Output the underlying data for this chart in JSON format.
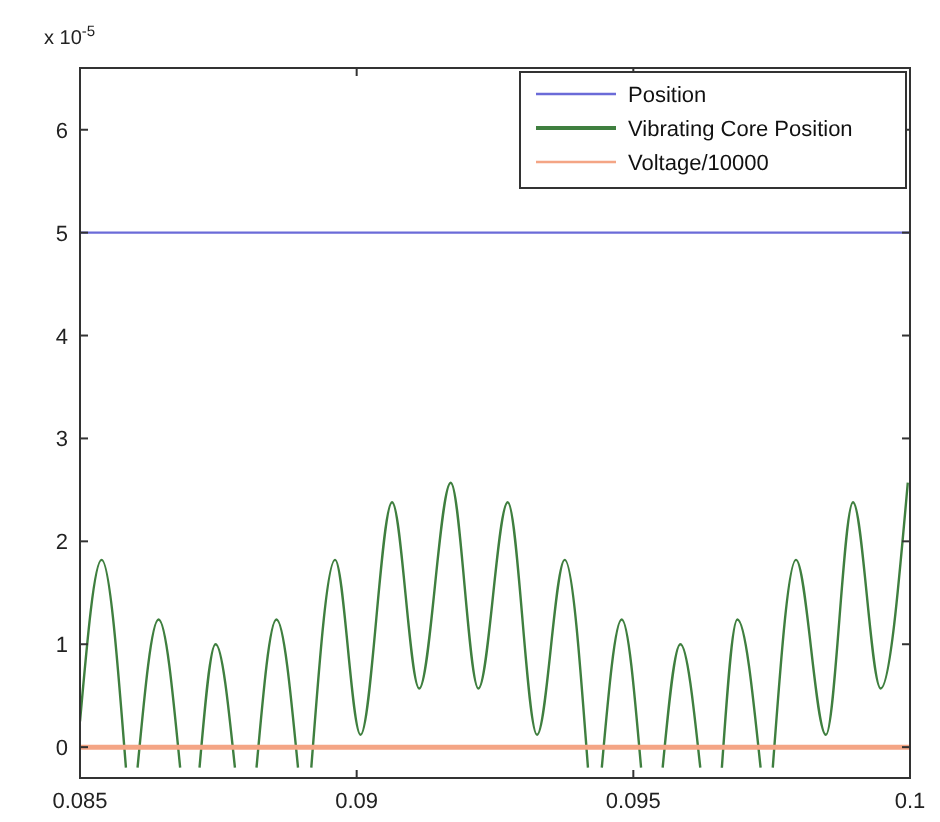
{
  "chart_data": {
    "type": "line",
    "annotations": [
      "x 10$^{-5}$"
    ],
    "xlim": [
      0.085,
      0.1
    ],
    "xticks": [
      0.085,
      0.09,
      0.095,
      0.1
    ],
    "ylim": [
      -0.3,
      6.6
    ],
    "yticks": [
      0,
      1,
      2,
      3,
      4,
      5,
      6
    ],
    "grid": false,
    "legend": "top right",
    "line_style": "solid",
    "marker": "none",
    "series": [
      {
        "name": "Position",
        "color": "#6b6bd8",
        "x": [
          0.085,
          0.1
        ],
        "values": [
          5,
          5
        ]
      },
      {
        "name": "Vibrating Core Position",
        "color": "#3f7f3f",
        "x": [
          0.085,
          0.08539,
          0.08583,
          0.08593,
          0.08604,
          0.08642,
          0.08681,
          0.08698,
          0.08716,
          0.08745,
          0.0878,
          0.088,
          0.08819,
          0.08855,
          0.08894,
          0.08906,
          0.08918,
          0.08961,
          0.09007,
          0.09064,
          0.09113,
          0.0917,
          0.0922,
          0.09273,
          0.09326,
          0.09376,
          0.09418,
          0.0943,
          0.09443,
          0.09479,
          0.09514,
          0.09534,
          0.09553,
          0.09585,
          0.09621,
          0.0964,
          0.0966,
          0.09688,
          0.0973,
          0.09741,
          0.09752,
          0.09794,
          0.09848,
          0.09897,
          0.09947,
          0.09996
        ],
        "values": [
          0.25,
          1.82,
          -0.2,
          null,
          -0.2,
          1.24,
          -0.2,
          null,
          -0.2,
          1.0,
          -0.2,
          null,
          -0.2,
          1.24,
          -0.2,
          null,
          -0.2,
          1.82,
          0.12,
          2.38,
          0.57,
          2.57,
          0.57,
          2.38,
          0.12,
          1.82,
          -0.2,
          null,
          -0.2,
          1.24,
          -0.2,
          null,
          -0.2,
          1.0,
          -0.2,
          null,
          -0.2,
          1.24,
          -0.2,
          null,
          -0.2,
          1.82,
          0.12,
          2.38,
          0.57,
          2.57
        ]
      },
      {
        "name": "Voltage/10000",
        "color": "#f4a585",
        "x": [
          0.085,
          0.1
        ],
        "values": [
          0,
          0
        ]
      }
    ]
  }
}
